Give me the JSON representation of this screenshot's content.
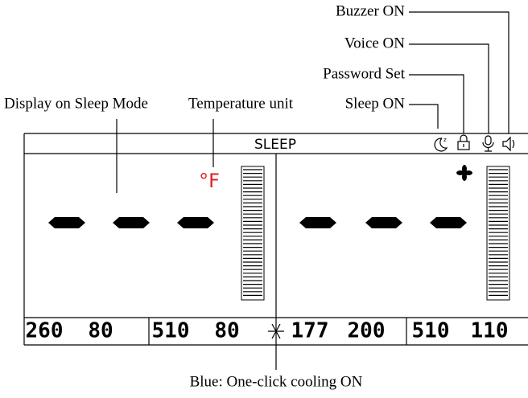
{
  "callouts": {
    "buzzer": "Buzzer ON",
    "voice": "Voice ON",
    "password": "Password Set",
    "sleep": "Sleep ON",
    "display_sleep": "Display on Sleep Mode",
    "temp_unit": "Temperature unit"
  },
  "display": {
    "mode": "SLEEP",
    "unit": "°F",
    "readings": [
      "260",
      "80",
      "510",
      "80",
      "177",
      "200",
      "510",
      "110"
    ]
  },
  "caption": "Blue: One-click cooling ON"
}
